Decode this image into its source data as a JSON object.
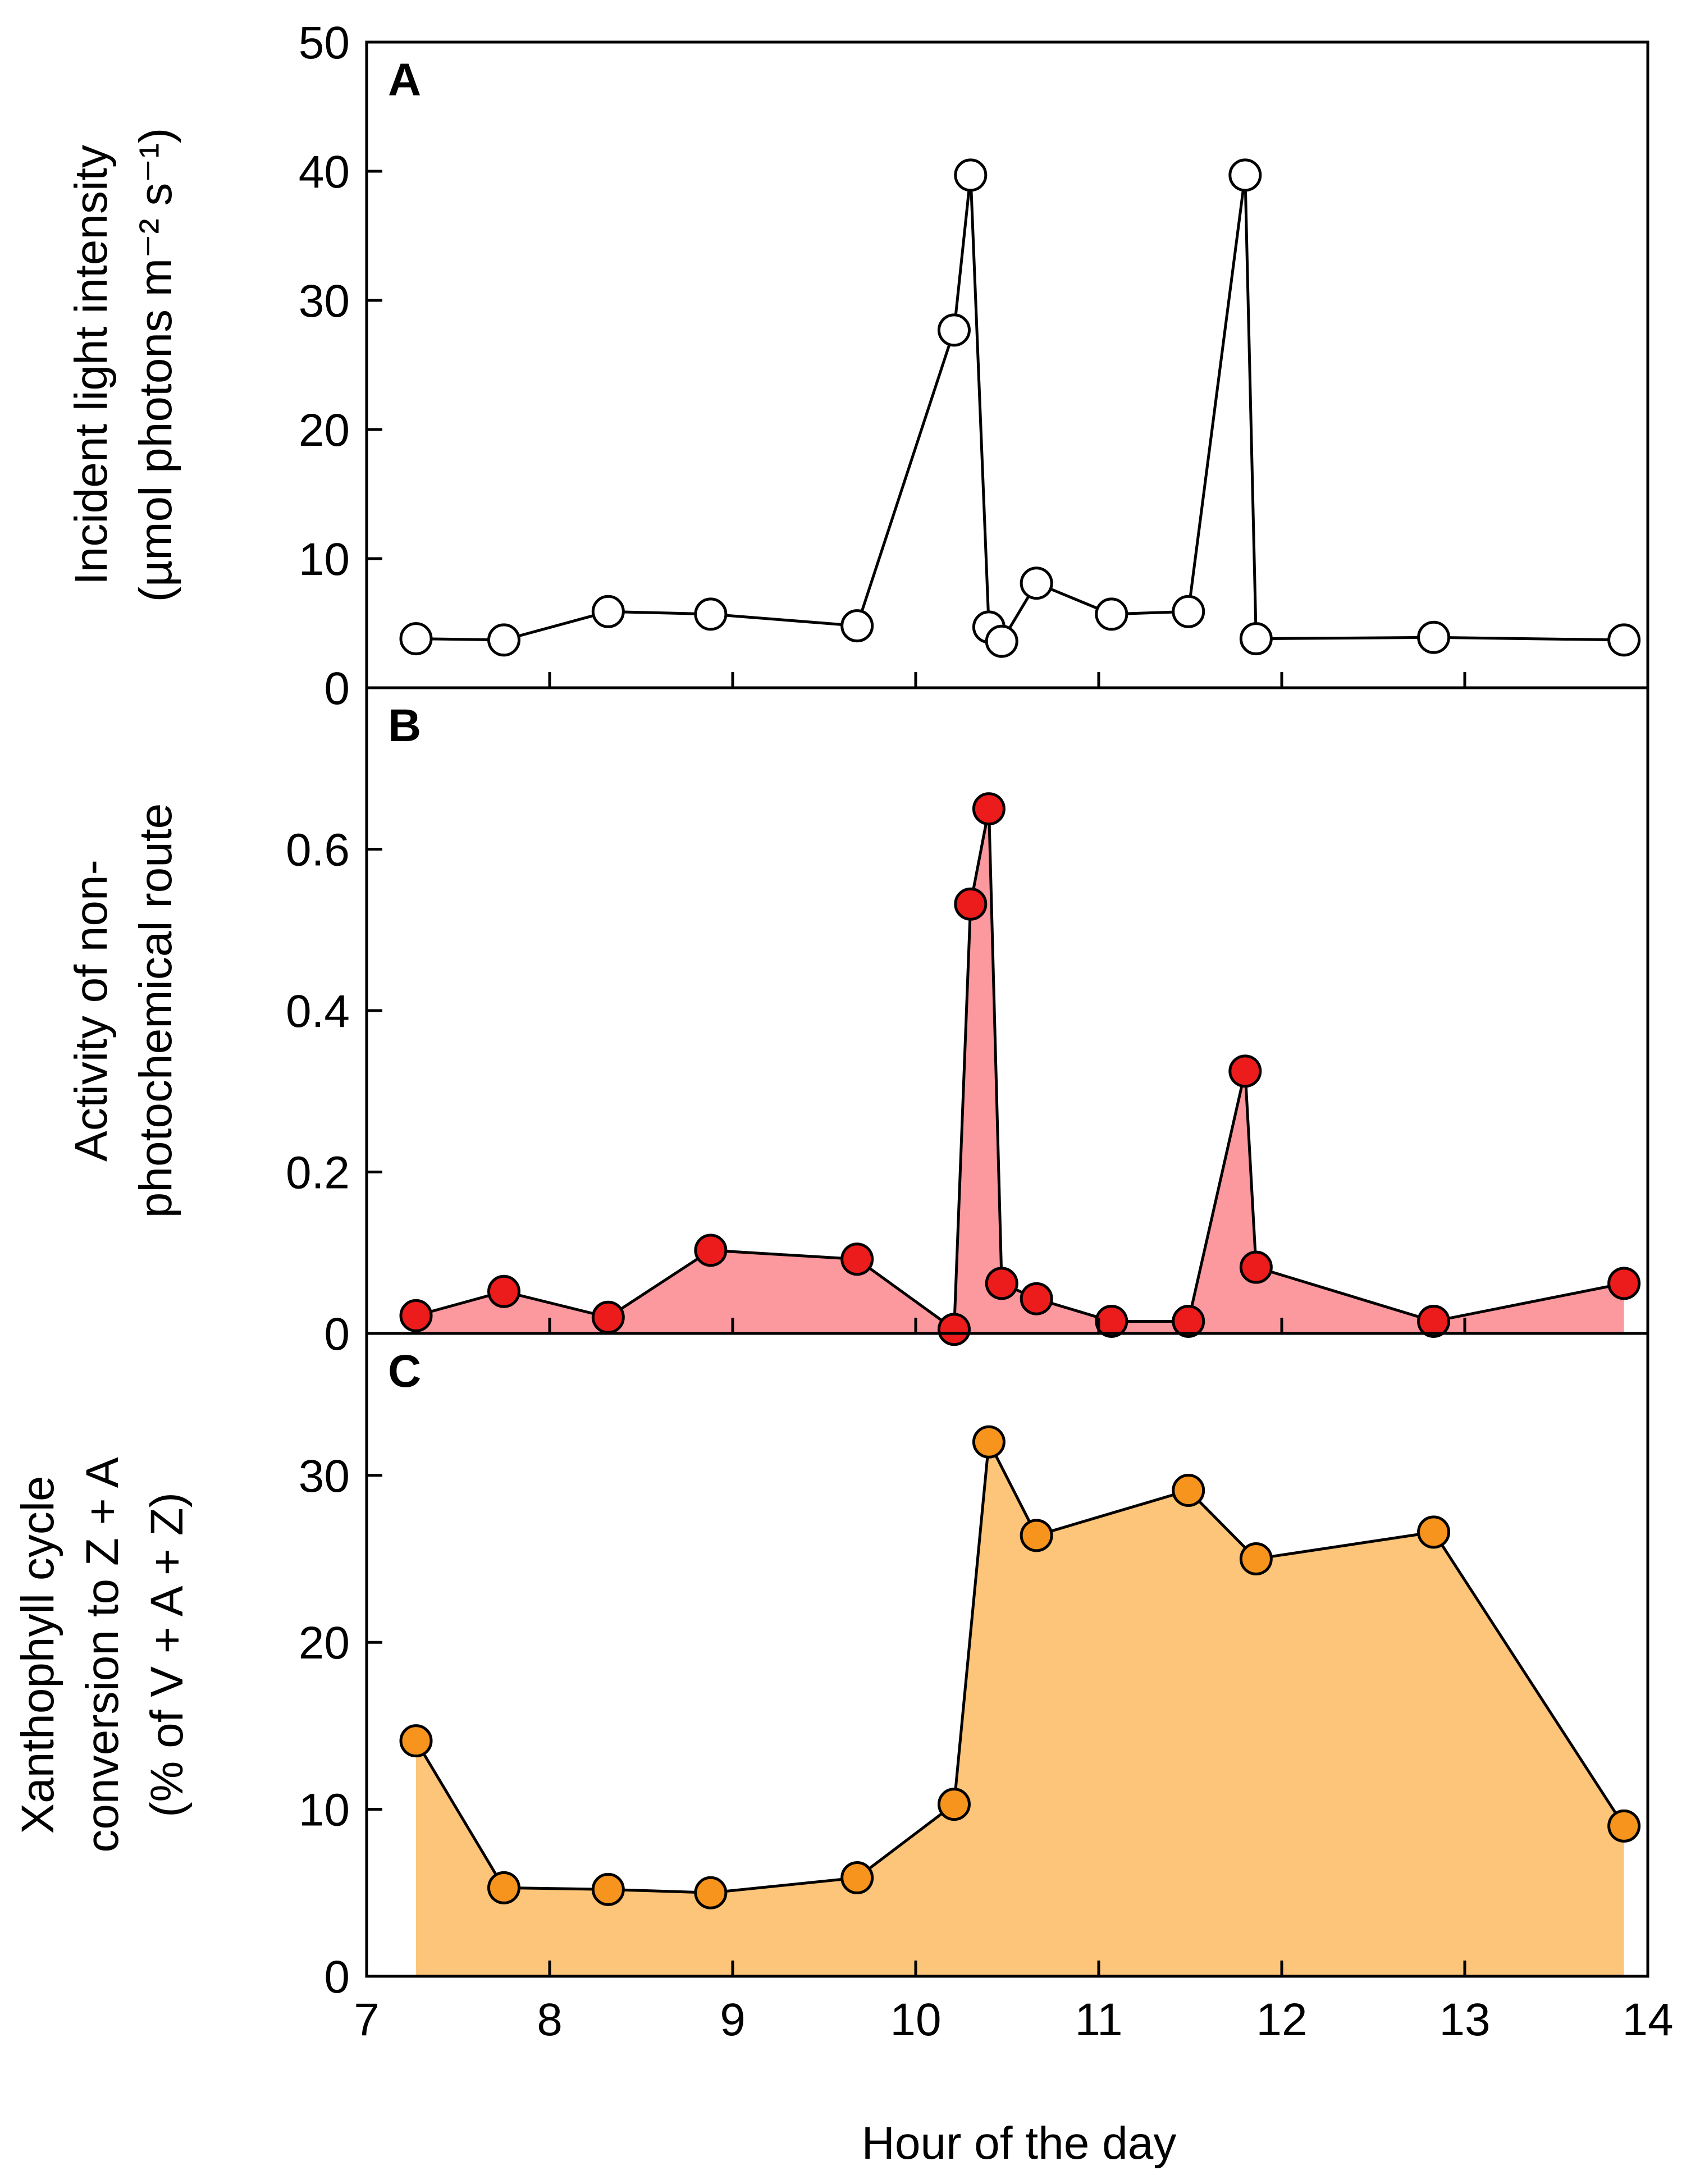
{
  "chart_data": [
    {
      "panel": "A",
      "type": "line",
      "ylabel_lines": [
        "Incident light intensity",
        "(µmol photons m⁻² s⁻¹)"
      ],
      "ylim": [
        0,
        50
      ],
      "yticks": [
        0,
        10,
        20,
        30,
        40,
        50
      ],
      "marker_fill": "#ffffff",
      "area_fill": null,
      "x": [
        7.27,
        7.75,
        8.32,
        8.88,
        9.68,
        10.21,
        10.3,
        10.4,
        10.47,
        10.66,
        11.07,
        11.49,
        11.8,
        11.86,
        12.83,
        13.87
      ],
      "y": [
        3.8,
        3.7,
        5.9,
        5.7,
        4.8,
        27.7,
        39.7,
        4.7,
        3.6,
        8.1,
        5.7,
        5.9,
        39.7,
        3.8,
        3.9,
        3.7
      ]
    },
    {
      "panel": "B",
      "type": "area",
      "ylabel_lines": [
        "Activity of non-",
        "photochemical route"
      ],
      "ylim": [
        0,
        0.8
      ],
      "yticks": [
        0,
        0.2,
        0.4,
        0.6
      ],
      "ytick_labels": [
        "0",
        "0.2",
        "0.4",
        "0.6"
      ],
      "marker_fill": "#ec1c1c",
      "area_fill": "#fb999e",
      "x": [
        7.27,
        7.75,
        8.32,
        8.88,
        9.68,
        10.21,
        10.3,
        10.4,
        10.47,
        10.66,
        11.07,
        11.49,
        11.8,
        11.86,
        12.83,
        13.87
      ],
      "y": [
        0.022,
        0.052,
        0.02,
        0.103,
        0.092,
        0.005,
        0.532,
        0.65,
        0.062,
        0.043,
        0.015,
        0.015,
        0.325,
        0.082,
        0.015,
        0.062
      ]
    },
    {
      "panel": "C",
      "type": "area",
      "ylabel_lines": [
        "Xanthophyll cycle",
        "conversion to Z + A",
        "(% of V + A + Z)"
      ],
      "ylim": [
        0,
        38.5
      ],
      "yticks": [
        0,
        10,
        20,
        30
      ],
      "marker_fill": "#f7941d",
      "area_fill": "#fdc57a",
      "x": [
        7.27,
        7.75,
        8.32,
        8.88,
        9.68,
        10.21,
        10.4,
        10.66,
        11.49,
        11.86,
        12.83,
        13.87
      ],
      "y": [
        14.1,
        5.3,
        5.2,
        5.0,
        5.9,
        10.3,
        32.0,
        26.4,
        29.1,
        25.0,
        26.6,
        9.0
      ]
    }
  ],
  "x_axis": {
    "xlabel": "Hour of the day",
    "xlim": [
      7,
      14
    ],
    "xticks": [
      7,
      8,
      9,
      10,
      11,
      12,
      13,
      14
    ]
  }
}
